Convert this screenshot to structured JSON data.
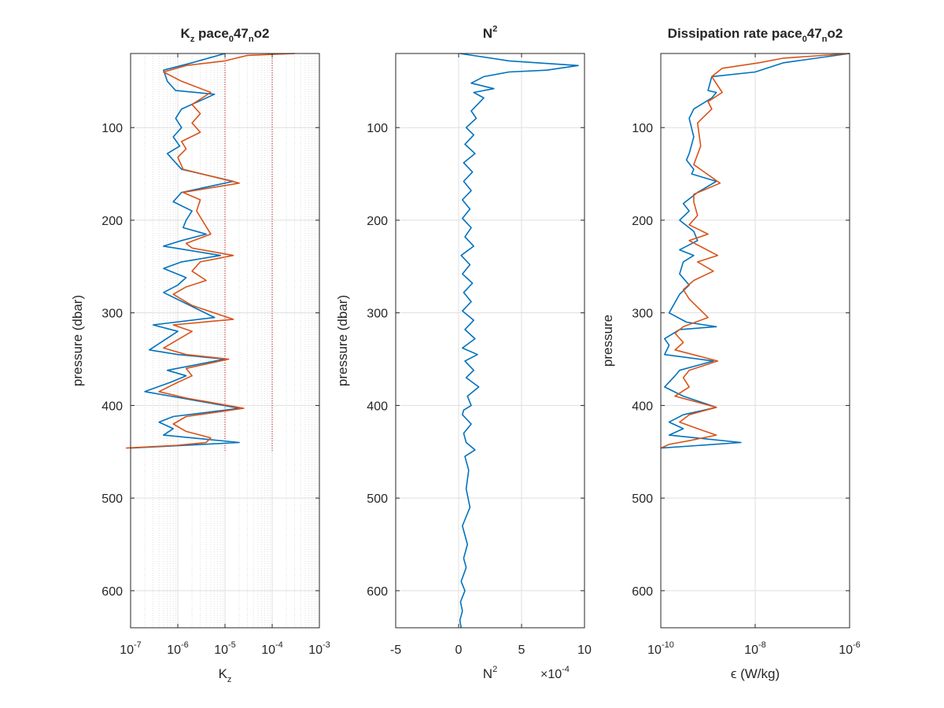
{
  "chart_data": [
    {
      "type": "line",
      "title": "K",
      "title_sub": "z",
      "title_mid": " pace",
      "title_sub2": "0",
      "title_mid2": "47",
      "title_sub3": "n",
      "title_end": "o2",
      "xlabel": "K",
      "xlabel_sub": "z",
      "ylabel": "pressure (dbar)",
      "xscale": "log",
      "xlim": [
        1e-07,
        0.001
      ],
      "ylim": [
        640,
        20
      ],
      "xticks": [
        1e-07,
        1e-06,
        1e-05,
        0.0001,
        0.001
      ],
      "xtick_base": "10",
      "xtick_exps": [
        "-7",
        "-6",
        "-5",
        "-4",
        "-3"
      ],
      "yticks": [
        "100",
        "200",
        "300",
        "400",
        "500",
        "600"
      ],
      "grid": "on",
      "minor_grid": "on",
      "reference_lines": [
        {
          "x": 1e-05,
          "color": "#cc0000",
          "style": "dotted",
          "y_range": [
            20,
            450
          ]
        },
        {
          "x": 0.0001,
          "color": "#cc0000",
          "style": "dotted",
          "y_range": [
            20,
            450
          ]
        }
      ],
      "series": [
        {
          "color": "#0072BD",
          "x": [
            1e-05,
            2e-06,
            5e-07,
            6e-07,
            9e-07,
            6e-06,
            1.2e-06,
            9e-07,
            1.2e-06,
            8e-07,
            1.1e-06,
            6e-07,
            1.2e-06,
            1.5e-05,
            1.2e-06,
            8e-07,
            2e-06,
            1.5e-06,
            1.3e-06,
            4e-06,
            1.2e-06,
            5e-07,
            8e-06,
            1.2e-06,
            5e-07,
            1.5e-06,
            1e-06,
            5e-07,
            1.5e-06,
            6e-06,
            3e-07,
            1e-06,
            2.5e-07,
            1e-06,
            1e-05,
            6e-07,
            1.5e-06,
            7e-07,
            2e-07,
            1.2e-06,
            2e-05,
            8e-07,
            4e-07,
            8e-07,
            5e-07,
            2e-05,
            1e-07
          ],
          "y": [
            20,
            30,
            38,
            50,
            60,
            64,
            80,
            90,
            100,
            110,
            120,
            128,
            145,
            158,
            170,
            180,
            190,
            200,
            208,
            215,
            222,
            228,
            238,
            245,
            252,
            262,
            270,
            278,
            290,
            305,
            313,
            320,
            340,
            345,
            350,
            362,
            368,
            375,
            385,
            392,
            403,
            412,
            418,
            425,
            432,
            440,
            446
          ]
        },
        {
          "color": "#D95319",
          "x": [
            0.0003,
            3e-05,
            1e-05,
            1.5e-06,
            5e-07,
            1.2e-06,
            5e-06,
            2e-06,
            3e-06,
            2e-06,
            3e-06,
            1.2e-06,
            1.5e-06,
            1e-06,
            1.3e-06,
            2e-05,
            1.3e-06,
            3e-06,
            2.5e-06,
            5e-06,
            1.5e-06,
            2e-06,
            1.5e-05,
            3e-06,
            2e-06,
            4e-06,
            1.5e-06,
            8e-07,
            2e-06,
            1.5e-05,
            8e-07,
            2e-06,
            5e-07,
            1.5e-06,
            1.2e-05,
            1.5e-06,
            2e-06,
            1e-06,
            4e-07,
            1.5e-06,
            2.5e-05,
            1.5e-06,
            8e-07,
            1.5e-06,
            5e-06,
            4e-06,
            1e-06,
            8e-08
          ],
          "y": [
            20,
            22,
            28,
            33,
            40,
            50,
            62,
            75,
            85,
            95,
            105,
            115,
            123,
            132,
            145,
            160,
            170,
            178,
            190,
            215,
            225,
            230,
            238,
            245,
            255,
            265,
            272,
            280,
            292,
            307,
            313,
            320,
            338,
            345,
            350,
            360,
            368,
            375,
            385,
            392,
            403,
            412,
            420,
            428,
            435,
            440,
            443,
            446
          ]
        }
      ]
    },
    {
      "type": "line",
      "title": "N",
      "title_sup": "2",
      "xlabel": "N",
      "xlabel_sup": "2",
      "x_multiplier": "×10",
      "x_multiplier_exp": "-4",
      "ylabel": "pressure (dbar)",
      "xscale": "linear",
      "xlim": [
        -5,
        10
      ],
      "ylim": [
        640,
        20
      ],
      "xticks": [
        -5,
        0,
        5,
        10
      ],
      "xtick_labels": [
        "-5",
        "0",
        "5",
        "10"
      ],
      "yticks": [
        "100",
        "200",
        "300",
        "400",
        "500",
        "600"
      ],
      "grid": "on",
      "series": [
        {
          "color": "#0072BD",
          "x": [
            0.1,
            4,
            9.5,
            7,
            4,
            2,
            1,
            2.8,
            1.2,
            2,
            1.5,
            1.0,
            1.4,
            0.6,
            1.2,
            0.5,
            1.3,
            0.4,
            1.1,
            0.4,
            1.0,
            0.3,
            0.9,
            0.3,
            1.0,
            0.5,
            1.2,
            0.2,
            0.9,
            0.3,
            1.1,
            0.4,
            1.0,
            0.3,
            1.2,
            0.5,
            1.3,
            0.3,
            1.5,
            0.5,
            1.2,
            0.6,
            1.6,
            0.7,
            1.0,
            0.4,
            0.3,
            1.0,
            0.4,
            0.6,
            1.3,
            0.5,
            0.8,
            0.6,
            0.9,
            0.3,
            0.7,
            0.4,
            0.6,
            0.2,
            0.5,
            0.15,
            0.3,
            0.1,
            0.2
          ],
          "y": [
            20,
            28,
            33,
            38,
            40,
            45,
            52,
            58,
            62,
            68,
            75,
            82,
            90,
            100,
            108,
            118,
            128,
            138,
            148,
            158,
            168,
            178,
            188,
            198,
            208,
            218,
            228,
            238,
            248,
            258,
            268,
            278,
            288,
            298,
            308,
            318,
            328,
            338,
            345,
            352,
            362,
            370,
            380,
            390,
            400,
            405,
            410,
            420,
            430,
            440,
            448,
            455,
            470,
            490,
            510,
            530,
            550,
            565,
            575,
            590,
            600,
            612,
            622,
            632,
            640
          ]
        }
      ]
    },
    {
      "type": "line",
      "title": "Dissipation rate pace",
      "title_sub": "0",
      "title_mid": "47",
      "title_sub2": "n",
      "title_end": "o2",
      "xlabel": "ϵ (W/kg)",
      "ylabel": "pressure",
      "xscale": "log",
      "xlim": [
        1e-10,
        1e-06
      ],
      "ylim": [
        640,
        20
      ],
      "xticks": [
        1e-10,
        1e-08,
        1e-06
      ],
      "xtick_base": "10",
      "xtick_exps": [
        "-10",
        "-8",
        "-6"
      ],
      "yticks": [
        "100",
        "200",
        "300",
        "400",
        "500",
        "600"
      ],
      "grid": "on",
      "series": [
        {
          "color": "#0072BD",
          "x": [
            1e-06,
            4e-08,
            1e-08,
            1.2e-09,
            1e-09,
            1.5e-09,
            1.2e-09,
            5e-10,
            4e-10,
            5e-10,
            4e-10,
            3.5e-10,
            5e-10,
            4.5e-10,
            1.5e-09,
            6e-10,
            3e-10,
            4e-10,
            2.5e-10,
            5e-10,
            6e-10,
            2.5e-10,
            5e-10,
            3e-10,
            2.5e-10,
            4e-10,
            2.5e-10,
            1.5e-10,
            3.5e-10,
            1.5e-09,
            2.5e-10,
            1.2e-10,
            1.5e-10,
            1.2e-10,
            1.3e-09,
            2.5e-10,
            2e-10,
            1.2e-10,
            3e-10,
            1.5e-09,
            3e-10,
            1.5e-10,
            3e-10,
            1.5e-10,
            5e-09,
            1e-10
          ],
          "y": [
            20,
            30,
            40,
            45,
            60,
            62,
            68,
            80,
            90,
            110,
            128,
            135,
            145,
            150,
            158,
            170,
            182,
            190,
            200,
            212,
            222,
            232,
            238,
            245,
            258,
            270,
            280,
            300,
            310,
            315,
            318,
            328,
            335,
            345,
            352,
            362,
            368,
            380,
            390,
            402,
            410,
            418,
            425,
            432,
            440,
            446
          ]
        },
        {
          "color": "#D95319",
          "x": [
            1e-06,
            4e-08,
            1.2e-08,
            2e-09,
            1.2e-09,
            2e-09,
            1e-09,
            1.2e-09,
            6e-10,
            7e-10,
            5e-10,
            1.8e-09,
            5e-10,
            5e-10,
            6e-10,
            4e-10,
            1e-09,
            4e-10,
            1.6e-09,
            6e-10,
            1.3e-09,
            5e-10,
            3e-10,
            4e-10,
            1e-09,
            3e-10,
            2e-10,
            3e-10,
            2e-10,
            1.6e-09,
            4e-10,
            3e-10,
            4e-10,
            2e-10,
            1.5e-09,
            4e-10,
            2.5e-10,
            6e-10,
            1.5e-09,
            4e-10,
            1.5e-10,
            1e-10
          ],
          "y": [
            20,
            25,
            30,
            36,
            45,
            62,
            72,
            80,
            95,
            120,
            140,
            160,
            172,
            180,
            195,
            205,
            215,
            222,
            238,
            245,
            255,
            265,
            275,
            285,
            305,
            315,
            322,
            332,
            340,
            352,
            362,
            370,
            380,
            390,
            402,
            410,
            418,
            425,
            432,
            438,
            442,
            446
          ]
        }
      ]
    }
  ]
}
